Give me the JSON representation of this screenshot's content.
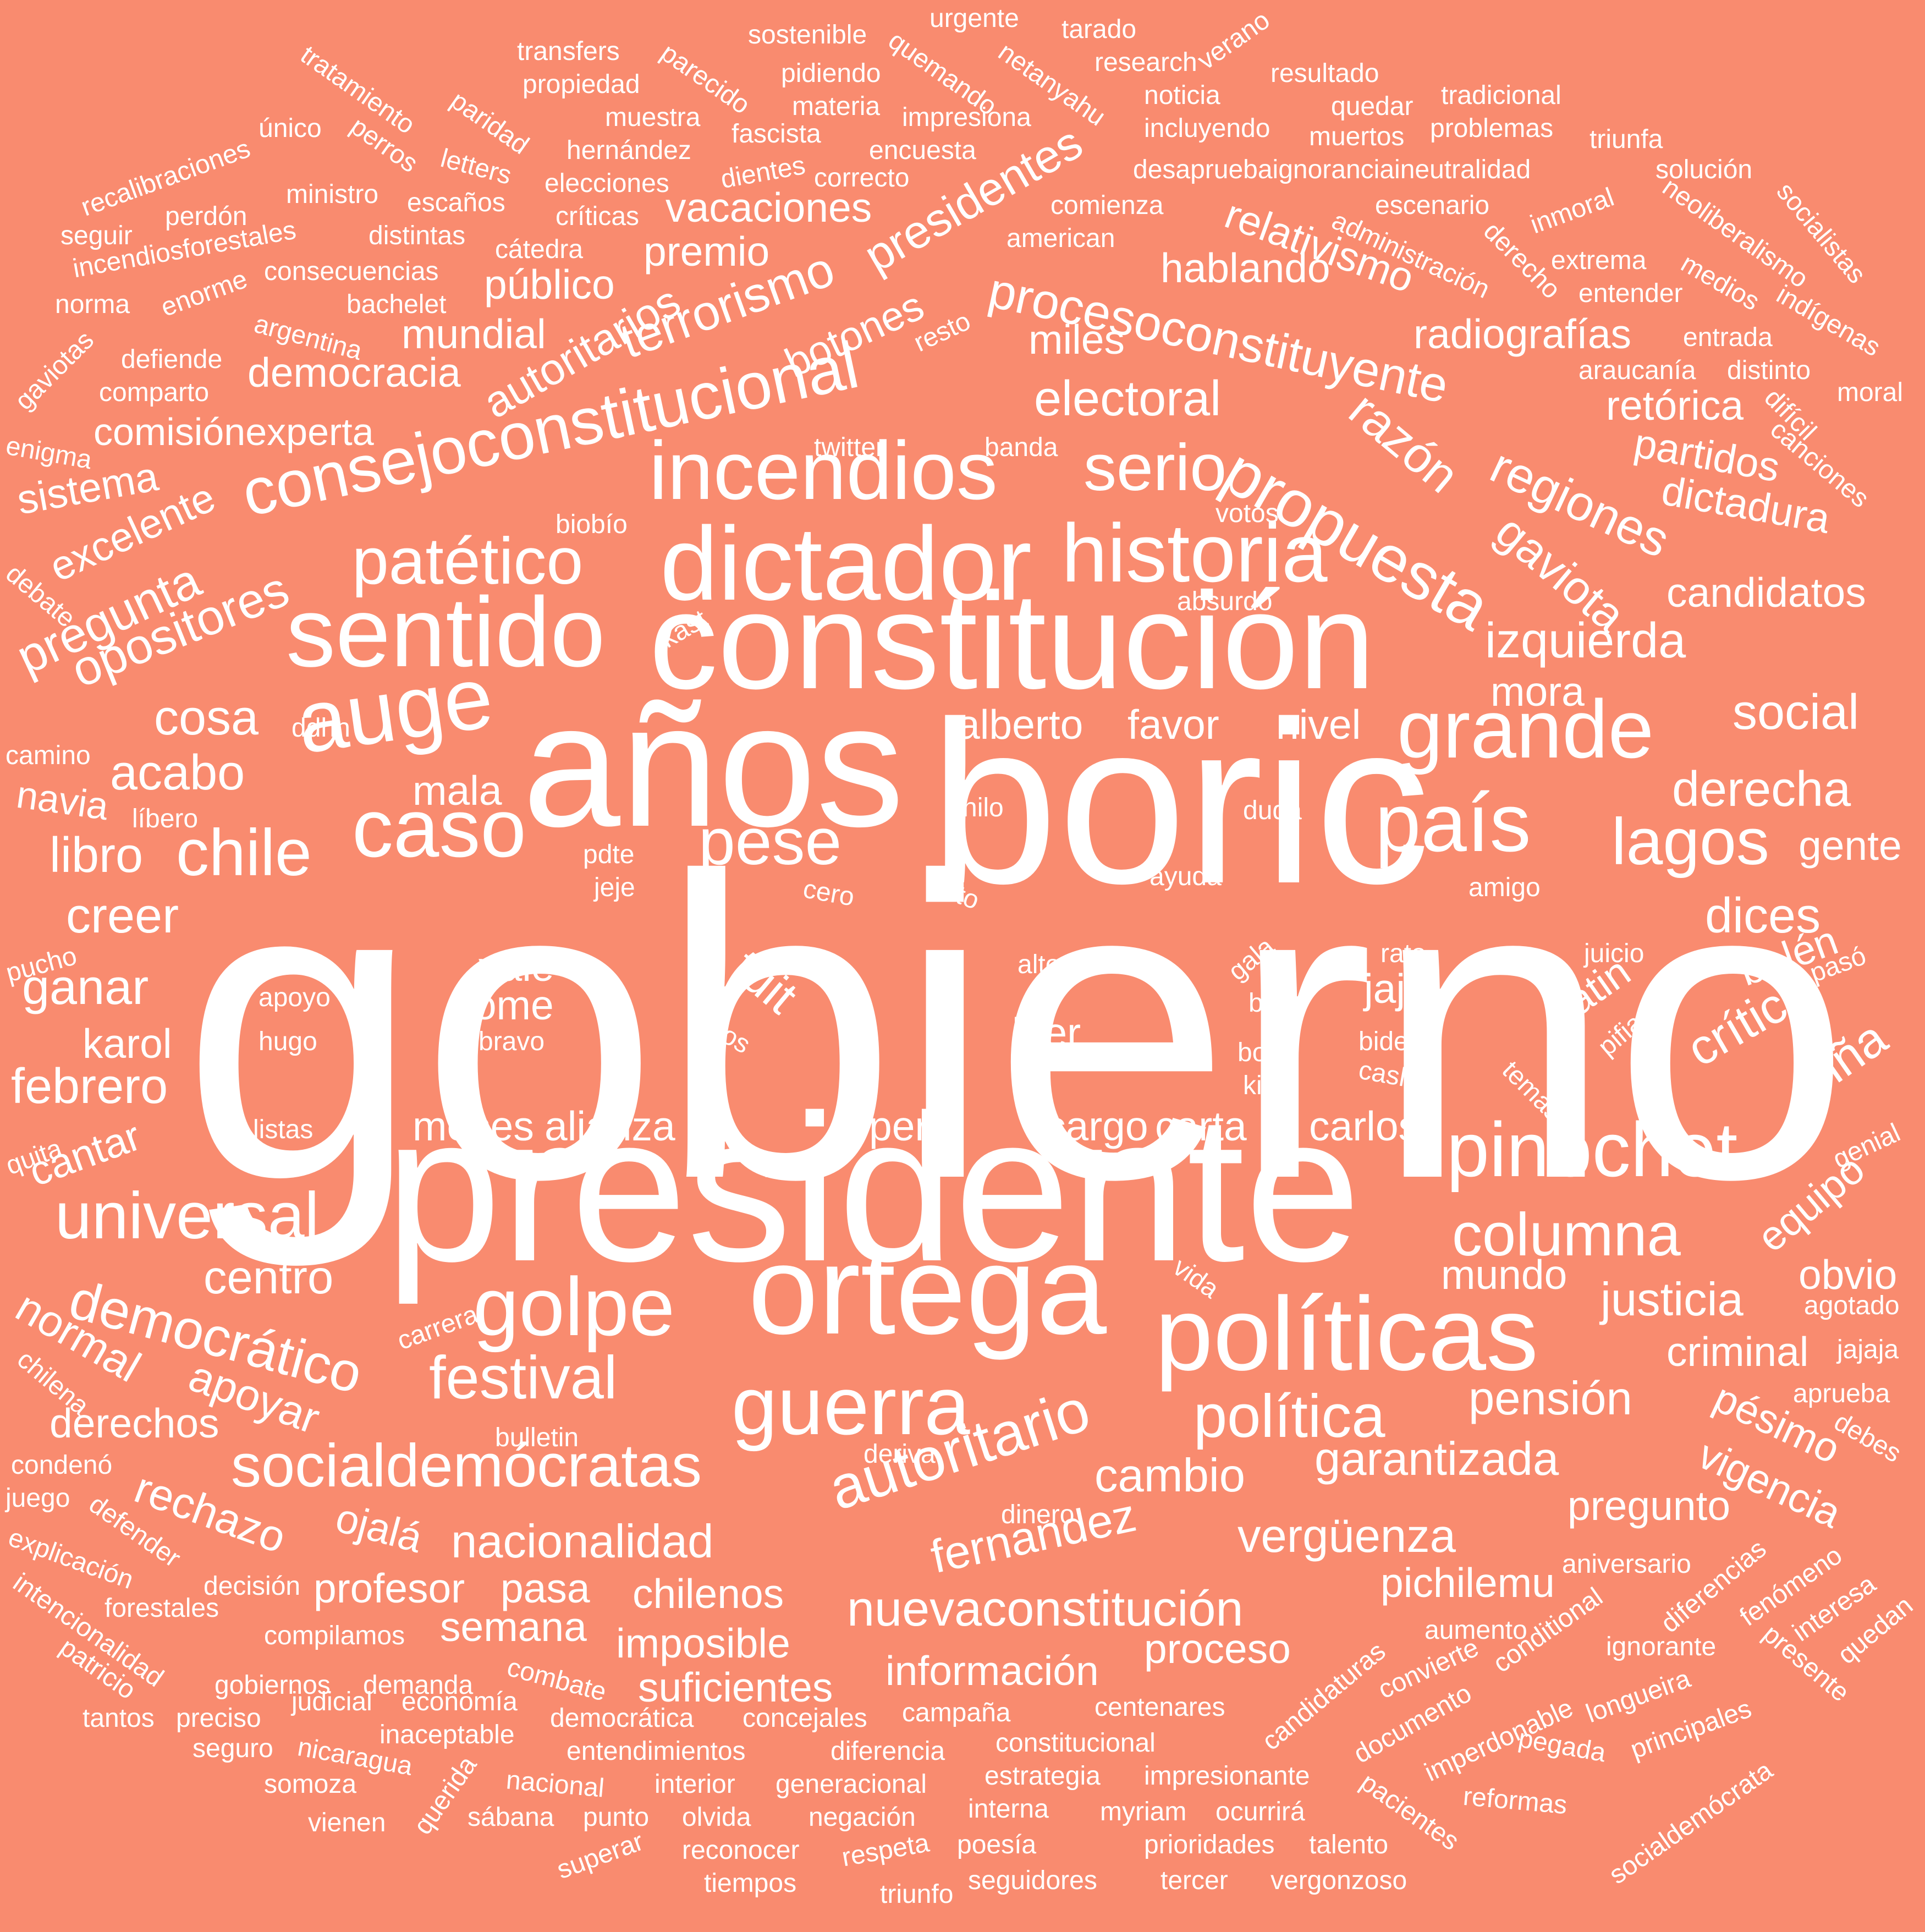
{
  "background_color": "#f98b6f",
  "text_color": "#ffffff",
  "words": [
    {
      "text": "gobierno",
      "tier": 1
    },
    {
      "text": "presidente",
      "tier": 1
    },
    {
      "text": "boric",
      "tier": 1
    },
    {
      "text": "años",
      "tier": 1
    },
    {
      "text": "constitución",
      "tier": 1
    },
    {
      "text": "ortega",
      "tier": 2
    },
    {
      "text": "dictador",
      "tier": 2
    },
    {
      "text": "sentido",
      "tier": 2
    },
    {
      "text": "políticas",
      "tier": 2
    },
    {
      "text": "incendios",
      "tier": 2
    },
    {
      "text": "auge",
      "tier": 2
    },
    {
      "text": "caso",
      "tier": 2
    },
    {
      "text": "grande",
      "tier": 2
    },
    {
      "text": "país",
      "tier": 2
    },
    {
      "text": "historia",
      "tier": 2
    },
    {
      "text": "pinochet",
      "tier": 2
    },
    {
      "text": "guerra",
      "tier": 2
    },
    {
      "text": "golpe",
      "tier": 2
    },
    {
      "text": "consejoconstitucional",
      "tier": 3
    },
    {
      "text": "patético",
      "tier": 3
    },
    {
      "text": "propuesta",
      "tier": 3
    },
    {
      "text": "pese",
      "tier": 3
    },
    {
      "text": "lagos",
      "tier": 3
    },
    {
      "text": "universal",
      "tier": 3
    },
    {
      "text": "chile",
      "tier": 3
    },
    {
      "text": "serio",
      "tier": 3
    },
    {
      "text": "autoritario",
      "tier": 3
    },
    {
      "text": "socialdemócratas",
      "tier": 3
    },
    {
      "text": "política",
      "tier": 3
    },
    {
      "text": "columna",
      "tier": 3
    },
    {
      "text": "festival",
      "tier": 3
    },
    {
      "text": "democrático",
      "tier": 3
    },
    {
      "text": "nuevaconstitución",
      "tier": 3
    },
    {
      "text": "procesoconstituyente",
      "tier": 3
    },
    {
      "text": "terrorismo",
      "tier": 3
    },
    {
      "text": "opositores",
      "tier": 4
    },
    {
      "text": "pregunta",
      "tier": 4
    },
    {
      "text": "derecha",
      "tier": 4
    },
    {
      "text": "izquierda",
      "tier": 4
    },
    {
      "text": "social",
      "tier": 4
    },
    {
      "text": "creer",
      "tier": 4
    },
    {
      "text": "ganar",
      "tier": 4
    },
    {
      "text": "febrero",
      "tier": 4
    },
    {
      "text": "libro",
      "tier": 4
    },
    {
      "text": "acabo",
      "tier": 4
    },
    {
      "text": "cosa",
      "tier": 4
    },
    {
      "text": "tuit",
      "tier": 4
    },
    {
      "text": "electoral",
      "tier": 4
    },
    {
      "text": "regiones",
      "tier": 4
    },
    {
      "text": "razón",
      "tier": 4
    },
    {
      "text": "gaviota",
      "tier": 4
    },
    {
      "text": "presidentes",
      "tier": 4
    },
    {
      "text": "autoritarios",
      "tier": 4
    },
    {
      "text": "dices",
      "tier": 4
    },
    {
      "text": "crítica",
      "tier": 4
    },
    {
      "text": "viña",
      "tier": 4
    },
    {
      "text": "justicia",
      "tier": 4
    },
    {
      "text": "pensión",
      "tier": 4
    },
    {
      "text": "garantizada",
      "tier": 4
    },
    {
      "text": "cambio",
      "tier": 4
    },
    {
      "text": "fernandez",
      "tier": 4
    },
    {
      "text": "vergüenza",
      "tier": 4
    },
    {
      "text": "nacionalidad",
      "tier": 4
    },
    {
      "text": "centro",
      "tier": 4
    },
    {
      "text": "normal",
      "tier": 4
    },
    {
      "text": "apoyar",
      "tier": 4
    },
    {
      "text": "rechazo",
      "tier": 4
    },
    {
      "text": "información",
      "tier": 4
    },
    {
      "text": "proceso",
      "tier": 4
    },
    {
      "text": "suficientes",
      "tier": 4
    },
    {
      "text": "imposible",
      "tier": 4
    },
    {
      "text": "hablando",
      "tier": 4
    },
    {
      "text": "relativismo",
      "tier": 4
    },
    {
      "text": "radiografías",
      "tier": 4
    },
    {
      "text": "retórica",
      "tier": 4
    },
    {
      "text": "partidos",
      "tier": 4
    },
    {
      "text": "dictadura",
      "tier": 4
    },
    {
      "text": "candidatos",
      "tier": 4
    },
    {
      "text": "mundial",
      "tier": 4
    },
    {
      "text": "democracia",
      "tier": 4
    },
    {
      "text": "vacaciones",
      "tier": 4
    },
    {
      "text": "premio",
      "tier": 4
    },
    {
      "text": "público",
      "tier": 4
    },
    {
      "text": "botones",
      "tier": 4
    },
    {
      "text": "miles",
      "tier": 4
    },
    {
      "text": "sistema",
      "tier": 4
    },
    {
      "text": "excelente",
      "tier": 4
    },
    {
      "text": "comisiónexperta",
      "tier": 4
    },
    {
      "text": "karol",
      "tier": 4
    },
    {
      "text": "cantar",
      "tier": 4
    },
    {
      "text": "mala",
      "tier": 4
    },
    {
      "text": "alberto",
      "tier": 4
    },
    {
      "text": "favor",
      "tier": 4
    },
    {
      "text": "nivel",
      "tier": 4
    },
    {
      "text": "mora",
      "tier": 4
    },
    {
      "text": "gente",
      "tier": 4
    },
    {
      "text": "latin",
      "tier": 4
    },
    {
      "text": "belén",
      "tier": 4
    },
    {
      "text": "equipo",
      "tier": 4
    },
    {
      "text": "obvio",
      "tier": 4
    },
    {
      "text": "mundo",
      "tier": 4
    },
    {
      "text": "criminal",
      "tier": 4
    },
    {
      "text": "pésimo",
      "tier": 4
    },
    {
      "text": "vigencia",
      "tier": 4
    },
    {
      "text": "pregunto",
      "tier": 4
    },
    {
      "text": "pichilemu",
      "tier": 4
    },
    {
      "text": "chilenos",
      "tier": 4
    },
    {
      "text": "semana",
      "tier": 4
    },
    {
      "text": "profesor",
      "tier": 4
    },
    {
      "text": "pasa",
      "tier": 4
    },
    {
      "text": "ojalá",
      "tier": 4
    },
    {
      "text": "derechos",
      "tier": 4
    },
    {
      "text": "meses",
      "tier": 4
    },
    {
      "text": "alianza",
      "tier": 4
    },
    {
      "text": "perú",
      "tier": 4
    },
    {
      "text": "cargo",
      "tier": 4
    },
    {
      "text": "carta",
      "tier": 4
    },
    {
      "text": "carlos",
      "tier": 4
    },
    {
      "text": "leer",
      "tier": 4
    },
    {
      "text": "jaja",
      "tier": 4
    },
    {
      "text": "vale",
      "tier": 4
    },
    {
      "text": "fome",
      "tier": 4
    },
    {
      "text": "navia",
      "tier": 4
    },
    {
      "text": "tratamiento",
      "tier": 5
    },
    {
      "text": "paridad",
      "tier": 5
    },
    {
      "text": "transfers",
      "tier": 5
    },
    {
      "text": "propiedad",
      "tier": 5
    },
    {
      "text": "parecido",
      "tier": 5
    },
    {
      "text": "sostenible",
      "tier": 5
    },
    {
      "text": "quemando",
      "tier": 5
    },
    {
      "text": "urgente",
      "tier": 5
    },
    {
      "text": "tarado",
      "tier": 5
    },
    {
      "text": "netanyahu",
      "tier": 5
    },
    {
      "text": "verano",
      "tier": 5
    },
    {
      "text": "research",
      "tier": 5
    },
    {
      "text": "resultado",
      "tier": 5
    },
    {
      "text": "pidiendo",
      "tier": 5
    },
    {
      "text": "materia",
      "tier": 5
    },
    {
      "text": "impresiona",
      "tier": 5
    },
    {
      "text": "noticia",
      "tier": 5
    },
    {
      "text": "quedar",
      "tier": 5
    },
    {
      "text": "tradicional",
      "tier": 5
    },
    {
      "text": "muestra",
      "tier": 5
    },
    {
      "text": "fascista",
      "tier": 5
    },
    {
      "text": "incluyendo",
      "tier": 5
    },
    {
      "text": "muertos",
      "tier": 5
    },
    {
      "text": "problemas",
      "tier": 5
    },
    {
      "text": "triunfa",
      "tier": 5
    },
    {
      "text": "único",
      "tier": 5
    },
    {
      "text": "perros",
      "tier": 5
    },
    {
      "text": "letters",
      "tier": 5
    },
    {
      "text": "hernández",
      "tier": 5
    },
    {
      "text": "encuesta",
      "tier": 5
    },
    {
      "text": "desapruebaignoranciaineutralidad",
      "tier": 5
    },
    {
      "text": "solución",
      "tier": 5
    },
    {
      "text": "recalibraciones",
      "tier": 5
    },
    {
      "text": "ministro",
      "tier": 5
    },
    {
      "text": "dientes",
      "tier": 5
    },
    {
      "text": "correcto",
      "tier": 5
    },
    {
      "text": "elecciones",
      "tier": 5
    },
    {
      "text": "escaños",
      "tier": 5
    },
    {
      "text": "críticas",
      "tier": 5
    },
    {
      "text": "comienza",
      "tier": 5
    },
    {
      "text": "escenario",
      "tier": 5
    },
    {
      "text": "inmoral",
      "tier": 5
    },
    {
      "text": "neoliberalismo",
      "tier": 5
    },
    {
      "text": "socialistas",
      "tier": 5
    },
    {
      "text": "perdón",
      "tier": 5
    },
    {
      "text": "seguir",
      "tier": 5
    },
    {
      "text": "incendiosforestales",
      "tier": 5
    },
    {
      "text": "distintas",
      "tier": 5
    },
    {
      "text": "cátedra",
      "tier": 5
    },
    {
      "text": "american",
      "tier": 5
    },
    {
      "text": "administración",
      "tier": 5
    },
    {
      "text": "derecho",
      "tier": 5
    },
    {
      "text": "extrema",
      "tier": 5
    },
    {
      "text": "medios",
      "tier": 5
    },
    {
      "text": "indígenas",
      "tier": 5
    },
    {
      "text": "consecuencias",
      "tier": 5
    },
    {
      "text": "norma",
      "tier": 5
    },
    {
      "text": "enorme",
      "tier": 5
    },
    {
      "text": "bachelet",
      "tier": 5
    },
    {
      "text": "entender",
      "tier": 5
    },
    {
      "text": "gaviotas",
      "tier": 5
    },
    {
      "text": "argentina",
      "tier": 5
    },
    {
      "text": "resto",
      "tier": 5
    },
    {
      "text": "entrada",
      "tier": 5
    },
    {
      "text": "defiende",
      "tier": 5
    },
    {
      "text": "araucanía",
      "tier": 5
    },
    {
      "text": "distinto",
      "tier": 5
    },
    {
      "text": "comparto",
      "tier": 5
    },
    {
      "text": "difícil",
      "tier": 5
    },
    {
      "text": "moral",
      "tier": 5
    },
    {
      "text": "canciones",
      "tier": 5
    },
    {
      "text": "enigma",
      "tier": 5
    },
    {
      "text": "twitter",
      "tier": 5
    },
    {
      "text": "banda",
      "tier": 5
    },
    {
      "text": "votos",
      "tier": 5
    },
    {
      "text": "biobío",
      "tier": 5
    },
    {
      "text": "debate",
      "tier": 5
    },
    {
      "text": "absurdo",
      "tier": 5
    },
    {
      "text": "kast",
      "tier": 5
    },
    {
      "text": "ddhh",
      "tier": 5
    },
    {
      "text": "camino",
      "tier": 5
    },
    {
      "text": "líbero",
      "tier": 5
    },
    {
      "text": "hilo",
      "tier": 5
    },
    {
      "text": "duda",
      "tier": 5
    },
    {
      "text": "pdte",
      "tier": 5
    },
    {
      "text": "jeje",
      "tier": 5
    },
    {
      "text": "cero",
      "tier": 5
    },
    {
      "text": "acto",
      "tier": 5
    },
    {
      "text": "ayuda",
      "tier": 5
    },
    {
      "text": "amigo",
      "tier": 5
    },
    {
      "text": "pucho",
      "tier": 5
    },
    {
      "text": "falso",
      "tier": 5
    },
    {
      "text": "apoyo",
      "tier": 5
    },
    {
      "text": "hugo",
      "tier": 5
    },
    {
      "text": "bravo",
      "tier": 5
    },
    {
      "text": "datos",
      "tier": 5
    },
    {
      "text": "alto",
      "tier": 5
    },
    {
      "text": "gala",
      "tier": 5
    },
    {
      "text": "baja",
      "tier": 5
    },
    {
      "text": "bono",
      "tier": 5
    },
    {
      "text": "kiev",
      "tier": 5
    },
    {
      "text": "rato",
      "tier": 5
    },
    {
      "text": "biden",
      "tier": 5
    },
    {
      "text": "cash",
      "tier": 5
    },
    {
      "text": "juicio",
      "tier": 5
    },
    {
      "text": "pifias",
      "tier": 5
    },
    {
      "text": "pasó",
      "tier": 5
    },
    {
      "text": "temas",
      "tier": 5
    },
    {
      "text": "quita",
      "tier": 5
    },
    {
      "text": "listas",
      "tier": 5
    },
    {
      "text": "genial",
      "tier": 5
    },
    {
      "text": "vida",
      "tier": 5
    },
    {
      "text": "agotado",
      "tier": 5
    },
    {
      "text": "carrera",
      "tier": 5
    },
    {
      "text": "chilena",
      "tier": 5
    },
    {
      "text": "jajaja",
      "tier": 5
    },
    {
      "text": "aprueba",
      "tier": 5
    },
    {
      "text": "debes",
      "tier": 5
    },
    {
      "text": "bulletin",
      "tier": 5
    },
    {
      "text": "deriva",
      "tier": 5
    },
    {
      "text": "condenó",
      "tier": 5
    },
    {
      "text": "juego",
      "tier": 5
    },
    {
      "text": "defender",
      "tier": 5
    },
    {
      "text": "dinero",
      "tier": 5
    },
    {
      "text": "explicación",
      "tier": 5
    },
    {
      "text": "aniversario",
      "tier": 5
    },
    {
      "text": "intencionalidad",
      "tier": 5
    },
    {
      "text": "decisión",
      "tier": 5
    },
    {
      "text": "diferencias",
      "tier": 5
    },
    {
      "text": "fenómeno",
      "tier": 5
    },
    {
      "text": "forestales",
      "tier": 5
    },
    {
      "text": "interesa",
      "tier": 5
    },
    {
      "text": "quedan",
      "tier": 5
    },
    {
      "text": "patricio",
      "tier": 5
    },
    {
      "text": "compilamos",
      "tier": 5
    },
    {
      "text": "aumento",
      "tier": 5
    },
    {
      "text": "conditional",
      "tier": 5
    },
    {
      "text": "presente",
      "tier": 5
    },
    {
      "text": "ignorante",
      "tier": 5
    },
    {
      "text": "gobiernos",
      "tier": 5
    },
    {
      "text": "demanda",
      "tier": 5
    },
    {
      "text": "combate",
      "tier": 5
    },
    {
      "text": "candidaturas",
      "tier": 5
    },
    {
      "text": "convierte",
      "tier": 5
    },
    {
      "text": "longueira",
      "tier": 5
    },
    {
      "text": "tantos",
      "tier": 5
    },
    {
      "text": "preciso",
      "tier": 5
    },
    {
      "text": "judicial",
      "tier": 5
    },
    {
      "text": "economía",
      "tier": 5
    },
    {
      "text": "campaña",
      "tier": 5
    },
    {
      "text": "centenares",
      "tier": 5
    },
    {
      "text": "documento",
      "tier": 5
    },
    {
      "text": "imperdonable",
      "tier": 5
    },
    {
      "text": "principales",
      "tier": 5
    },
    {
      "text": "seguro",
      "tier": 5
    },
    {
      "text": "nicaragua",
      "tier": 5
    },
    {
      "text": "democrática",
      "tier": 5
    },
    {
      "text": "concejales",
      "tier": 5
    },
    {
      "text": "inaceptable",
      "tier": 5
    },
    {
      "text": "entendimientos",
      "tier": 5
    },
    {
      "text": "diferencia",
      "tier": 5
    },
    {
      "text": "constitucional",
      "tier": 5
    },
    {
      "text": "pegada",
      "tier": 5
    },
    {
      "text": "socialdemócrata",
      "tier": 5
    },
    {
      "text": "somoza",
      "tier": 5
    },
    {
      "text": "querida",
      "tier": 5
    },
    {
      "text": "nacional",
      "tier": 5
    },
    {
      "text": "interior",
      "tier": 5
    },
    {
      "text": "generacional",
      "tier": 5
    },
    {
      "text": "estrategia",
      "tier": 5
    },
    {
      "text": "impresionante",
      "tier": 5
    },
    {
      "text": "pacientes",
      "tier": 5
    },
    {
      "text": "reformas",
      "tier": 5
    },
    {
      "text": "vienen",
      "tier": 5
    },
    {
      "text": "sábana",
      "tier": 5
    },
    {
      "text": "punto",
      "tier": 5
    },
    {
      "text": "olvida",
      "tier": 5
    },
    {
      "text": "negación",
      "tier": 5
    },
    {
      "text": "interna",
      "tier": 5
    },
    {
      "text": "myriam",
      "tier": 5
    },
    {
      "text": "ocurrirá",
      "tier": 5
    },
    {
      "text": "superar",
      "tier": 5
    },
    {
      "text": "reconocer",
      "tier": 5
    },
    {
      "text": "respeta",
      "tier": 5
    },
    {
      "text": "poesía",
      "tier": 5
    },
    {
      "text": "prioridades",
      "tier": 5
    },
    {
      "text": "talento",
      "tier": 5
    },
    {
      "text": "tiempos",
      "tier": 5
    },
    {
      "text": "triunfo",
      "tier": 5
    },
    {
      "text": "seguidores",
      "tier": 5
    },
    {
      "text": "tercer",
      "tier": 5
    },
    {
      "text": "vergonzoso",
      "tier": 5
    }
  ]
}
